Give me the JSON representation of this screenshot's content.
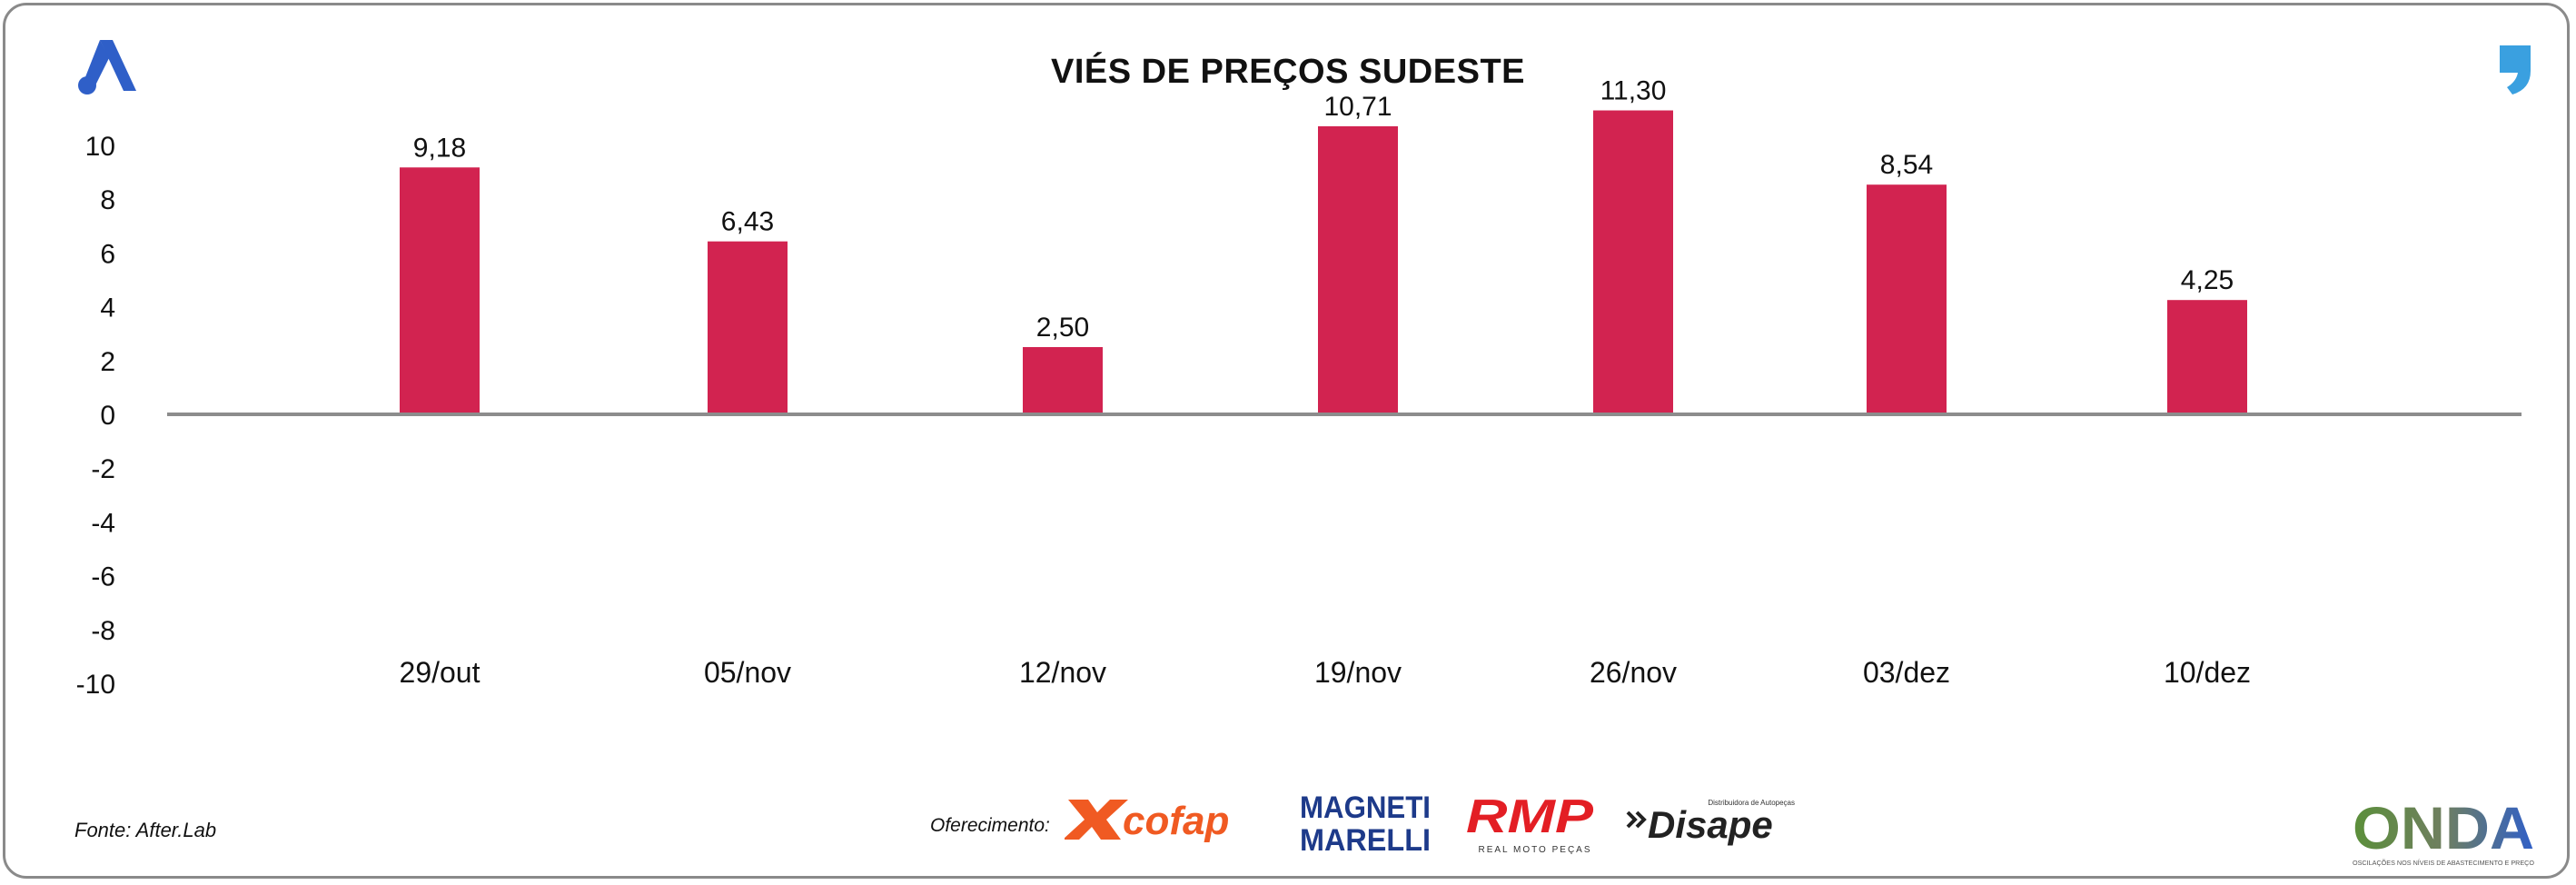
{
  "header": {
    "title": "VIÉS DE PREÇOS SUDESTE"
  },
  "footer": {
    "source": "Fonte: After.Lab",
    "sponsor_label": "Oferecimento:"
  },
  "logos": {
    "cofap": "cofap",
    "magneti_1": "MAGNETI",
    "magneti_2": "MARELLI",
    "rmp": "RMP",
    "rmp_sub": "REAL MOTO PEÇAS",
    "disape": "Disape",
    "disape_sub": "Distribuidora de Autopeças",
    "onda": "ONDA",
    "onda_sub": "OSCILAÇÕES NOS NÍVEIS DE ABASTECIMENTO E PREÇO"
  },
  "colors": {
    "bar": "#d22350",
    "axis": "#8c8c8c",
    "brand_blue": "#2f5fc8",
    "cofap": "#f05a22",
    "magneti": "#1d3a8a",
    "rmp": "#e31e24"
  },
  "chart_data": {
    "type": "bar",
    "title": "VIÉS DE PREÇOS SUDESTE",
    "categories": [
      "29/out",
      "05/nov",
      "12/nov",
      "19/nov",
      "26/nov",
      "03/dez",
      "10/dez"
    ],
    "values": [
      9.18,
      6.43,
      2.5,
      10.71,
      11.3,
      8.54,
      4.25
    ],
    "value_labels": [
      "9,18",
      "6,43",
      "2,50",
      "10,71",
      "11,30",
      "8,54",
      "4,25"
    ],
    "ylim": [
      -10,
      10
    ],
    "yticks": [
      10,
      8,
      6,
      4,
      2,
      0,
      -2,
      -4,
      -6,
      -8,
      -10
    ],
    "grid": false,
    "legend": "none",
    "xlabel": "",
    "ylabel": ""
  }
}
